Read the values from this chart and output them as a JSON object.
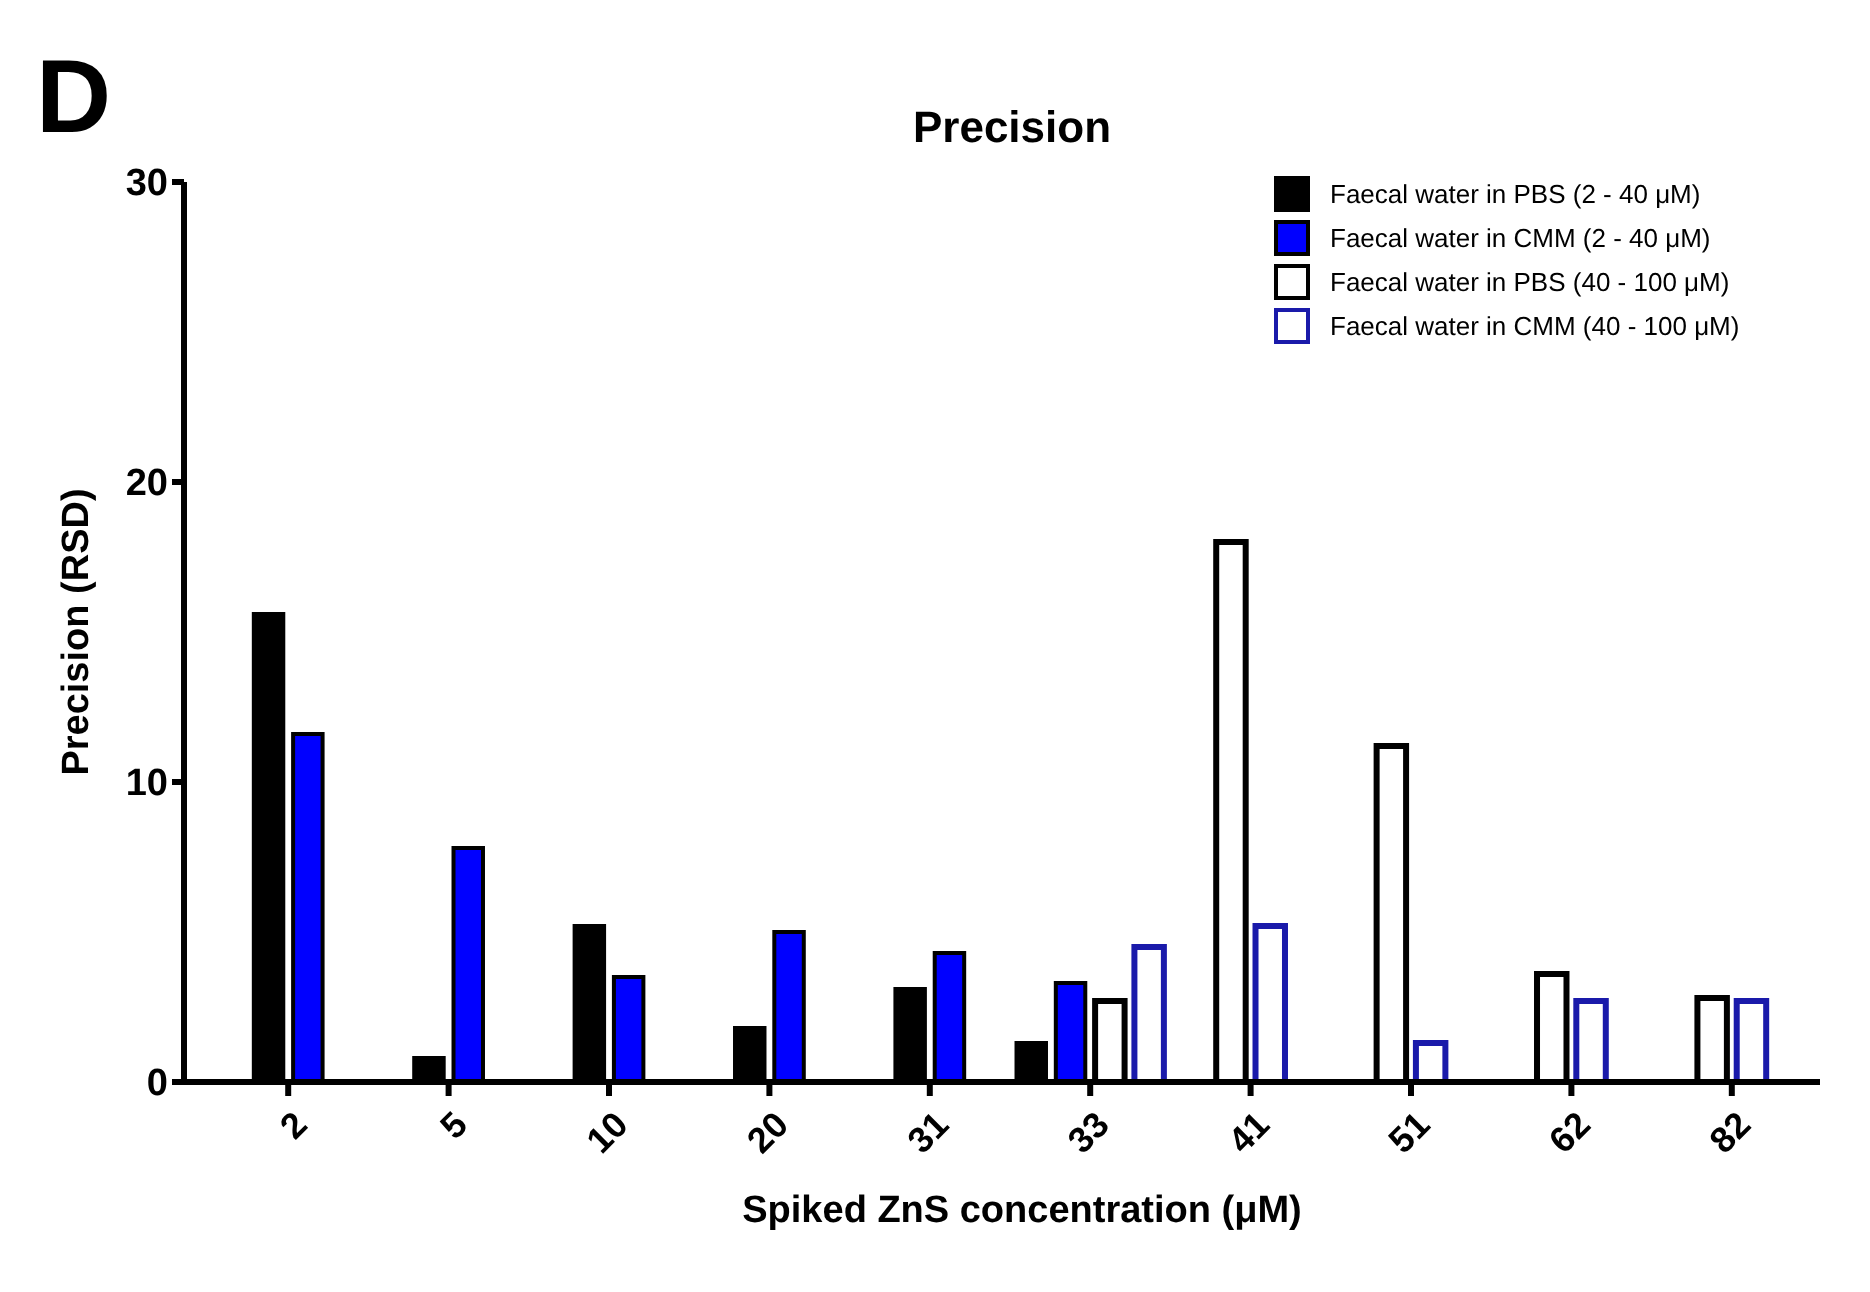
{
  "chart_data": {
    "type": "bar",
    "title": "Precision",
    "xlabel": "Spiked ZnS concentration (μM)",
    "ylabel": "Precision (RSD)",
    "annotations": [
      "D"
    ],
    "categories": [
      "2",
      "5",
      "10",
      "20",
      "31",
      "33",
      "41",
      "51",
      "62",
      "82"
    ],
    "ylim": [
      0,
      30
    ],
    "yticks": [
      0,
      10,
      20,
      30
    ],
    "grid": false,
    "legend": "top right",
    "series": [
      {
        "name": "Faecal water in PBS (2 - 40 μM)",
        "color": "#000000",
        "values": [
          15.6,
          0.8,
          5.2,
          1.8,
          3.1,
          1.3,
          null,
          null,
          null,
          null
        ]
      },
      {
        "name": "Faecal water in CMM (2 - 40 μM)",
        "color": "#0000ff",
        "values": [
          11.6,
          7.8,
          3.5,
          5.0,
          4.3,
          3.3,
          null,
          null,
          null,
          null
        ]
      },
      {
        "name": "Faecal water in PBS (40 - 100 μM)",
        "color": "#000000",
        "values": [
          null,
          null,
          null,
          null,
          null,
          2.7,
          18.0,
          11.2,
          3.6,
          2.8
        ]
      },
      {
        "name": "Faecal water in CMM (40 - 100 μM)",
        "color": "#1a1aaa",
        "values": [
          null,
          null,
          null,
          null,
          null,
          4.5,
          5.2,
          1.3,
          2.7,
          2.7
        ]
      }
    ]
  }
}
